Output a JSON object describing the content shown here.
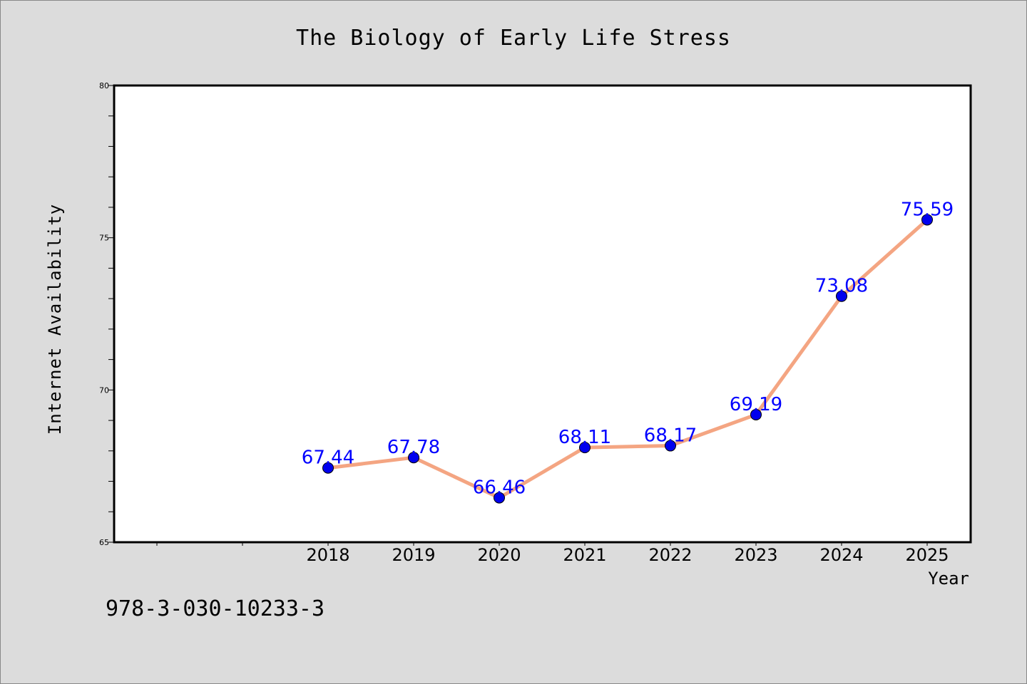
{
  "chart_data": {
    "type": "line",
    "title": "The Biology of Early Life Stress",
    "xlabel": "Year",
    "ylabel": "Internet Availability",
    "x": [
      "2018",
      "2019",
      "2020",
      "2021",
      "2022",
      "2023",
      "2024",
      "2025"
    ],
    "series": [
      {
        "values": [
          67.44,
          67.78,
          66.46,
          68.11,
          68.17,
          69.19,
          73.08,
          75.59
        ],
        "labels": [
          "67.44",
          "67.78",
          "66.46",
          "68.11",
          "68.17",
          "69.19",
          "73.08",
          "75.59"
        ],
        "line_color": "#f4a582",
        "marker_color": "#0000ee"
      }
    ],
    "ylim": [
      65,
      80
    ],
    "yticks": [
      "65",
      "70",
      "75",
      "80"
    ],
    "grid": false,
    "legend": "none"
  },
  "annotation": {
    "isbn": "978-3-030-10233-3"
  },
  "colors": {
    "background": "#dcdcdc",
    "plot_background": "#ffffff",
    "label_color": "#0000ff"
  }
}
